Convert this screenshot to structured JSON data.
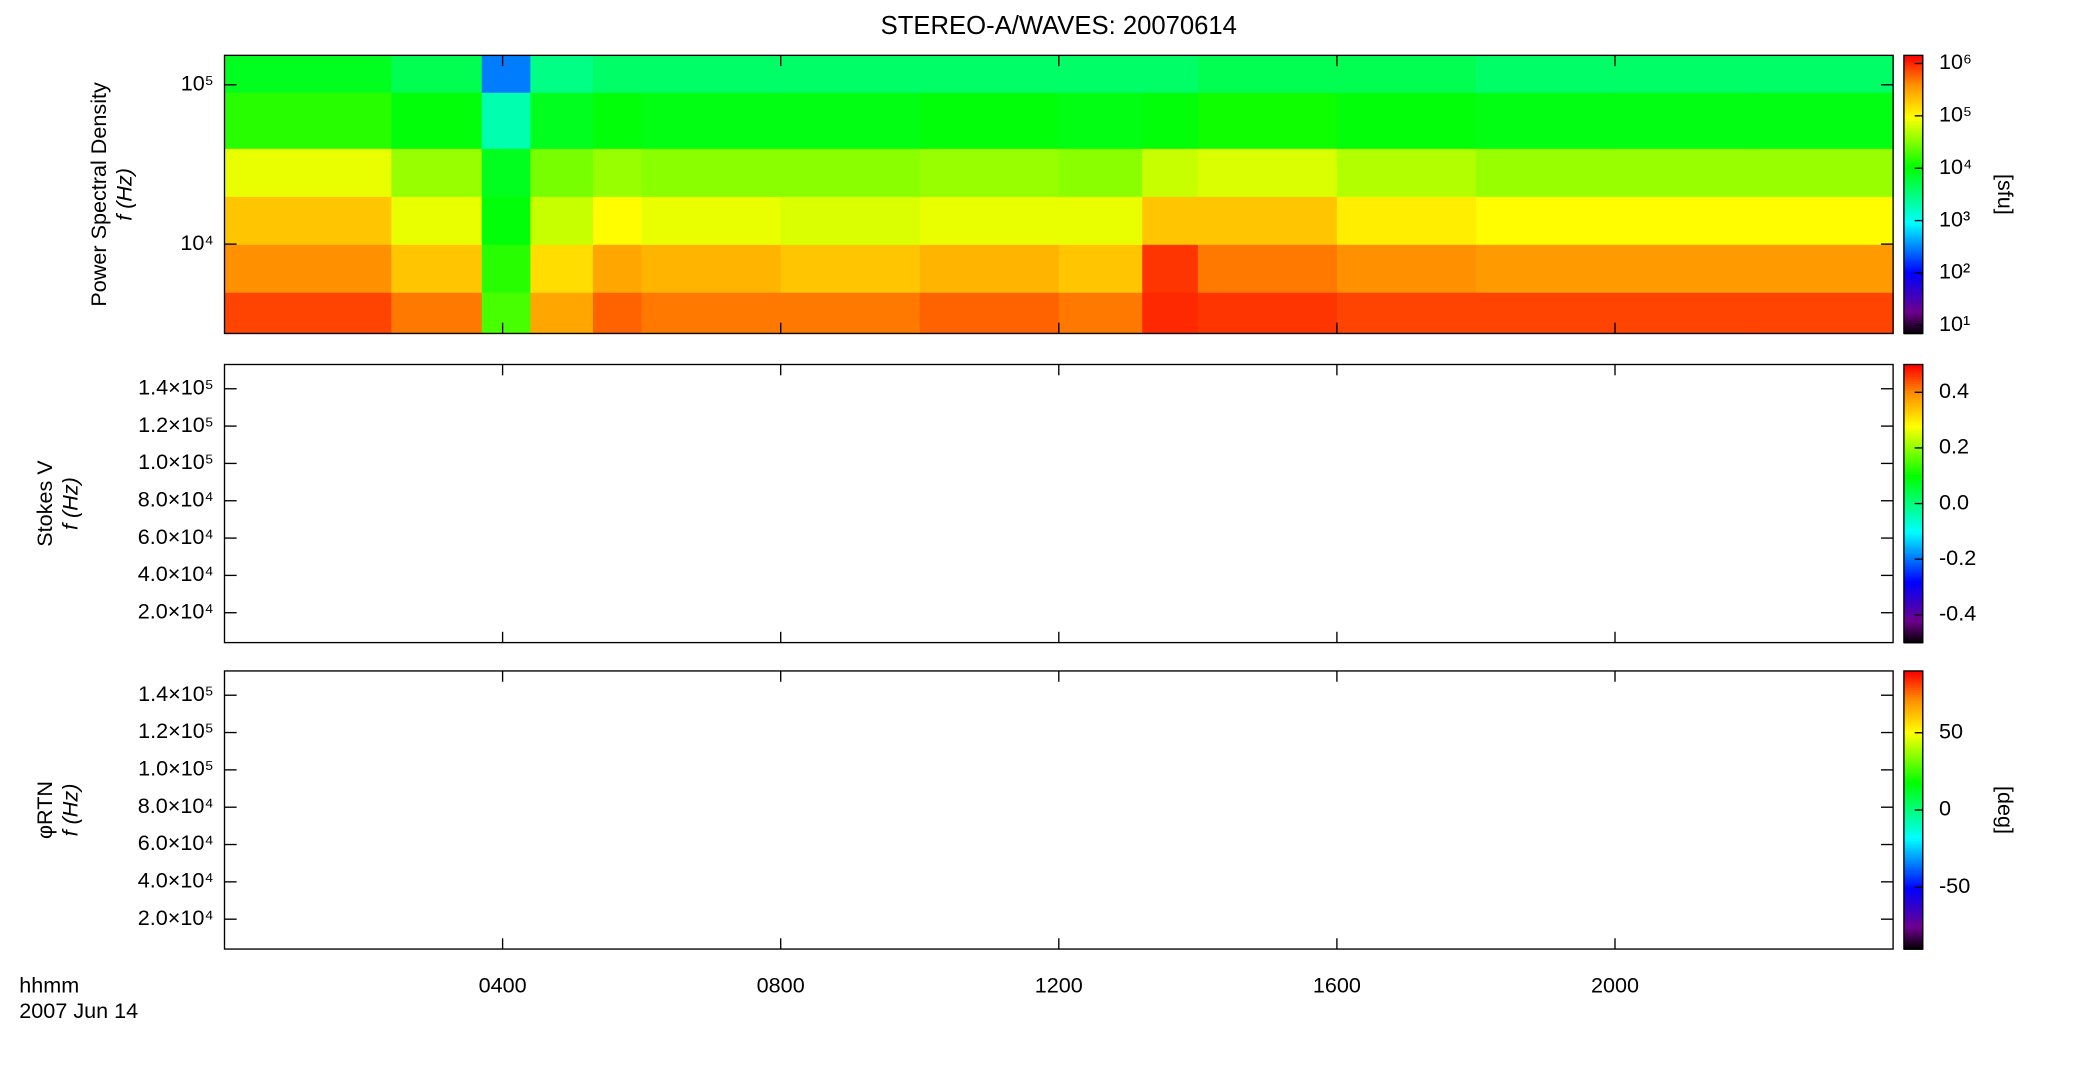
{
  "chart_data": [
    {
      "type": "heatmap",
      "title": "STEREO-A/WAVES: 20070614",
      "ylabel": "Power Spectral Density",
      "ylabel2": "f (Hz)",
      "ylog": true,
      "ylim": [
        2750,
        153000
      ],
      "yticks": [
        {
          "value": 10000,
          "label": "10⁴"
        },
        {
          "value": 100000,
          "label": "10⁵"
        }
      ],
      "x_bins": [
        0,
        2.4,
        3.7,
        4.4,
        5.3,
        6,
        8,
        10,
        12,
        13.2,
        14,
        16,
        18,
        20,
        22,
        24
      ],
      "y_bins": [
        2750,
        5000,
        10000,
        20000,
        40000,
        90000,
        153000
      ],
      "z": [
        [
          800000,
          500000,
          20000,
          300000,
          600000,
          500000,
          500000,
          600000,
          500000,
          1000000,
          900000,
          800000,
          800000,
          800000,
          800000
        ],
        [
          400000,
          200000,
          15000,
          150000,
          300000,
          250000,
          200000,
          250000,
          200000,
          900000,
          500000,
          400000,
          350000,
          350000,
          350000
        ],
        [
          200000,
          80000,
          10000,
          60000,
          100000,
          80000,
          70000,
          80000,
          80000,
          200000,
          200000,
          120000,
          100000,
          100000,
          100000
        ],
        [
          80000,
          40000,
          8000,
          30000,
          40000,
          35000,
          35000,
          40000,
          35000,
          60000,
          70000,
          50000,
          40000,
          40000,
          40000
        ],
        [
          15000,
          10000,
          2000,
          8000,
          10000,
          9000,
          9000,
          10000,
          9000,
          10000,
          12000,
          10000,
          9000,
          9000,
          9000
        ],
        [
          8000,
          5000,
          300,
          3000,
          4000,
          4000,
          4000,
          4000,
          4000,
          4000,
          5000,
          5000,
          4000,
          4000,
          4000
        ]
      ],
      "zlog": true,
      "zlim": [
        7,
        1430000
      ],
      "zticks": [
        {
          "value": 10,
          "label": "10¹"
        },
        {
          "value": 100,
          "label": "10²"
        },
        {
          "value": 1000,
          "label": "10³"
        },
        {
          "value": 10000,
          "label": "10⁴"
        },
        {
          "value": 100000,
          "label": "10⁵"
        },
        {
          "value": 1000000,
          "label": "10⁶"
        }
      ],
      "zlabel": "[sfu]"
    },
    {
      "type": "heatmap",
      "ylabel": "Stokes V",
      "ylabel2": "f (Hz)",
      "ylim": [
        4000,
        153000
      ],
      "yticks": [
        {
          "value": 20000,
          "label": "2.0×10⁴"
        },
        {
          "value": 40000,
          "label": "4.0×10⁴"
        },
        {
          "value": 60000,
          "label": "6.0×10⁴"
        },
        {
          "value": 80000,
          "label": "8.0×10⁴"
        },
        {
          "value": 100000,
          "label": "1.0×10⁵"
        },
        {
          "value": 120000,
          "label": "1.2×10⁵"
        },
        {
          "value": 140000,
          "label": "1.4×10⁵"
        }
      ],
      "zlim": [
        -0.5,
        0.5
      ],
      "zticks": [
        -0.4,
        -0.2,
        {
          "value": 0,
          "label": "0.0"
        },
        0.2,
        0.4
      ]
    },
    {
      "type": "heatmap",
      "ylabel": "φRTN",
      "ylabel2": "f (Hz)",
      "ylim": [
        4000,
        153000
      ],
      "yticks": [
        {
          "value": 20000,
          "label": "2.0×10⁴"
        },
        {
          "value": 40000,
          "label": "4.0×10⁴"
        },
        {
          "value": 60000,
          "label": "6.0×10⁴"
        },
        {
          "value": 80000,
          "label": "8.0×10⁴"
        },
        {
          "value": 100000,
          "label": "1.0×10⁵"
        },
        {
          "value": 120000,
          "label": "1.2×10⁵"
        },
        {
          "value": 140000,
          "label": "1.4×10⁵"
        }
      ],
      "zlim": [
        -90,
        90
      ],
      "zticks": [
        -50,
        0,
        50
      ],
      "zlabel": "[deg]",
      "xlim": [
        0,
        24
      ],
      "xticks": [
        {
          "value": 4,
          "label": "0400"
        },
        {
          "value": 8,
          "label": "0800"
        },
        {
          "value": 12,
          "label": "1200"
        },
        {
          "value": 16,
          "label": "1600"
        },
        {
          "value": 20,
          "label": "2000"
        }
      ],
      "xlabel": "hhmm",
      "date": "2007 Jun 14"
    }
  ]
}
